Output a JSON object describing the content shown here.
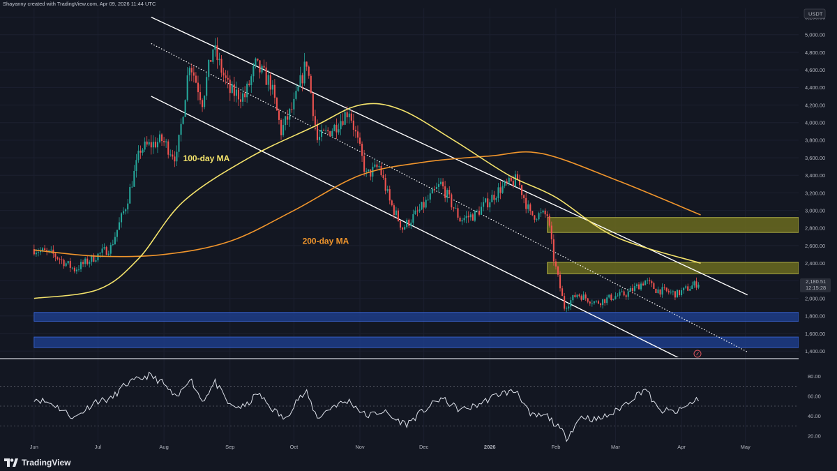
{
  "header": {
    "credit": "Shayanny created with TradingView.com, Apr 09, 2026 11:44 UTC"
  },
  "footer": {
    "brand": "TradingView"
  },
  "colors": {
    "background": "#131722",
    "candle_up": "#26a69a",
    "candle_down": "#ef5350",
    "ma100": "#f4e36b",
    "ma200": "#f0952c",
    "channel": "#ffffff",
    "supply_zone": "#6b6b1e",
    "demand_zone": "#1e3f8f",
    "rsi_line": "#dfe3ec"
  },
  "chart_data": [
    {
      "type": "candlestick",
      "quote_currency": "USDT",
      "y_ticks": [
        "5,200.00",
        "5,000.00",
        "4,800.00",
        "4,600.00",
        "4,400.00",
        "4,200.00",
        "4,000.00",
        "3,800.00",
        "3,600.00",
        "3,400.00",
        "3,200.00",
        "3,000.00",
        "2,800.00",
        "2,600.00",
        "2,400.00",
        "2,200.00",
        "2,000.00",
        "1,800.00",
        "1,600.00",
        "1,400.00"
      ],
      "y_range": [
        1330,
        5300
      ],
      "x_ticks": [
        "Jun",
        "Jul",
        "Aug",
        "Sep",
        "Oct",
        "Nov",
        "Dec",
        "2026",
        "Feb",
        "Mar",
        "Apr",
        "May"
      ],
      "last_price": "2,180.51",
      "countdown": "12:15:28",
      "close_path": [
        [
          "2025-06-01",
          2560
        ],
        [
          "2025-06-10",
          2500
        ],
        [
          "2025-06-20",
          2330
        ],
        [
          "2025-06-30",
          2480
        ],
        [
          "2025-07-07",
          2580
        ],
        [
          "2025-07-14",
          3050
        ],
        [
          "2025-07-21",
          3700
        ],
        [
          "2025-07-31",
          3800
        ],
        [
          "2025-08-07",
          3600
        ],
        [
          "2025-08-13",
          4700
        ],
        [
          "2025-08-19",
          4250
        ],
        [
          "2025-08-24",
          4850
        ],
        [
          "2025-09-01",
          4350
        ],
        [
          "2025-09-08",
          4300
        ],
        [
          "2025-09-13",
          4650
        ],
        [
          "2025-09-20",
          4450
        ],
        [
          "2025-09-25",
          3900
        ],
        [
          "2025-10-01",
          4200
        ],
        [
          "2025-10-07",
          4700
        ],
        [
          "2025-10-12",
          3800
        ],
        [
          "2025-10-20",
          3950
        ],
        [
          "2025-10-27",
          4150
        ],
        [
          "2025-11-04",
          3400
        ],
        [
          "2025-11-10",
          3500
        ],
        [
          "2025-11-15",
          3100
        ],
        [
          "2025-11-21",
          2800
        ],
        [
          "2025-11-29",
          3000
        ],
        [
          "2025-12-09",
          3300
        ],
        [
          "2025-12-18",
          2900
        ],
        [
          "2025-12-25",
          2950
        ],
        [
          "2026-01-06",
          3250
        ],
        [
          "2026-01-14",
          3350
        ],
        [
          "2026-01-20",
          2950
        ],
        [
          "2026-01-28",
          2950
        ],
        [
          "2026-01-31",
          2450
        ],
        [
          "2026-02-05",
          1900
        ],
        [
          "2026-02-11",
          2050
        ],
        [
          "2026-02-20",
          1950
        ],
        [
          "2026-02-28",
          2020
        ],
        [
          "2026-03-06",
          2050
        ],
        [
          "2026-03-15",
          2200
        ],
        [
          "2026-03-20",
          2100
        ],
        [
          "2026-03-30",
          2050
        ],
        [
          "2026-04-09",
          2180
        ]
      ],
      "ma100": [
        [
          "2025-06-01",
          2000
        ],
        [
          "2025-07-01",
          2100
        ],
        [
          "2025-07-20",
          2450
        ],
        [
          "2025-08-10",
          3100
        ],
        [
          "2025-09-10",
          3600
        ],
        [
          "2025-10-10",
          3950
        ],
        [
          "2025-11-01",
          4200
        ],
        [
          "2025-11-20",
          4150
        ],
        [
          "2025-12-15",
          3800
        ],
        [
          "2026-01-10",
          3400
        ],
        [
          "2026-02-01",
          3150
        ],
        [
          "2026-03-01",
          2700
        ],
        [
          "2026-04-10",
          2400
        ]
      ],
      "ma200": [
        [
          "2025-06-01",
          2550
        ],
        [
          "2025-07-01",
          2480
        ],
        [
          "2025-08-01",
          2500
        ],
        [
          "2025-09-01",
          2650
        ],
        [
          "2025-10-01",
          3000
        ],
        [
          "2025-11-01",
          3400
        ],
        [
          "2025-12-01",
          3550
        ],
        [
          "2026-01-01",
          3620
        ],
        [
          "2026-01-25",
          3650
        ],
        [
          "2026-03-01",
          3350
        ],
        [
          "2026-04-10",
          2950
        ]
      ],
      "channel_upper": [
        [
          "2025-07-26",
          5200
        ],
        [
          "2026-05-02",
          2040
        ]
      ],
      "channel_lower": [
        [
          "2025-07-26",
          4300
        ],
        [
          "2026-03-31",
          1320
        ]
      ],
      "channel_middle": [
        [
          "2025-07-26",
          4900
        ],
        [
          "2026-05-02",
          1390
        ]
      ],
      "zones": [
        {
          "kind": "supply",
          "from": "2026-01-28",
          "low": 2750,
          "high": 2920
        },
        {
          "kind": "supply",
          "from": "2026-01-28",
          "low": 2280,
          "high": 2410
        },
        {
          "kind": "demand",
          "from": "2025-06-01",
          "low": 1740,
          "high": 1840
        },
        {
          "kind": "demand",
          "from": "2025-06-01",
          "low": 1440,
          "high": 1560
        }
      ],
      "annotations": [
        {
          "text": "100-day MA",
          "x": "2025-08-10",
          "y": 3560
        },
        {
          "text": "200-day MA",
          "x": "2025-10-05",
          "y": 2620
        }
      ]
    },
    {
      "type": "line",
      "name": "RSI",
      "y_ticks": [
        "80.00",
        "60.00",
        "40.00",
        "20.00"
      ],
      "y_range": [
        12,
        95
      ],
      "bands": [
        70,
        50,
        30
      ],
      "values": [
        [
          "2025-06-01",
          58
        ],
        [
          "2025-06-10",
          52
        ],
        [
          "2025-06-20",
          38
        ],
        [
          "2025-06-30",
          55
        ],
        [
          "2025-07-07",
          57
        ],
        [
          "2025-07-14",
          72
        ],
        [
          "2025-07-25",
          81
        ],
        [
          "2025-07-31",
          74
        ],
        [
          "2025-08-07",
          57
        ],
        [
          "2025-08-13",
          79
        ],
        [
          "2025-08-19",
          55
        ],
        [
          "2025-08-25",
          74
        ],
        [
          "2025-09-01",
          50
        ],
        [
          "2025-09-08",
          49
        ],
        [
          "2025-09-14",
          63
        ],
        [
          "2025-09-20",
          49
        ],
        [
          "2025-09-27",
          36
        ],
        [
          "2025-10-02",
          56
        ],
        [
          "2025-10-07",
          63
        ],
        [
          "2025-10-12",
          38
        ],
        [
          "2025-10-20",
          51
        ],
        [
          "2025-10-27",
          55
        ],
        [
          "2025-11-04",
          40
        ],
        [
          "2025-11-12",
          45
        ],
        [
          "2025-11-17",
          37
        ],
        [
          "2025-11-23",
          32
        ],
        [
          "2025-11-30",
          44
        ],
        [
          "2025-12-09",
          58
        ],
        [
          "2025-12-18",
          46
        ],
        [
          "2025-12-25",
          50
        ],
        [
          "2026-01-06",
          63
        ],
        [
          "2026-01-14",
          65
        ],
        [
          "2026-01-20",
          40
        ],
        [
          "2026-01-28",
          40
        ],
        [
          "2026-02-04",
          24
        ],
        [
          "2026-02-06",
          18
        ],
        [
          "2026-02-13",
          40
        ],
        [
          "2026-02-20",
          36
        ],
        [
          "2026-02-28",
          43
        ],
        [
          "2026-03-06",
          53
        ],
        [
          "2026-03-15",
          68
        ],
        [
          "2026-03-21",
          46
        ],
        [
          "2026-03-30",
          44
        ],
        [
          "2026-04-09",
          58
        ]
      ]
    }
  ]
}
